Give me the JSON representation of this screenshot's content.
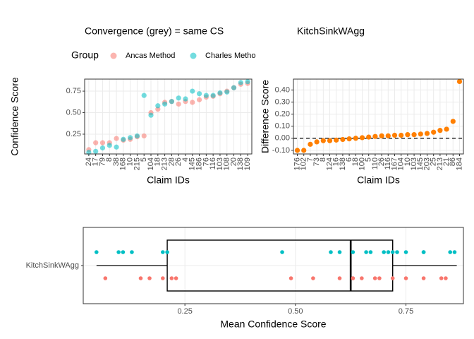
{
  "chart_data": [
    {
      "type": "dot",
      "title": "Convergence (grey) = same CS",
      "xlabel": "Claim IDs",
      "ylabel": "Confidence Score",
      "legend_title": "Group",
      "categories": [
        "24",
        "17",
        "79",
        "8",
        "38",
        "168",
        "10",
        "215",
        "5",
        "104",
        "18",
        "213",
        "28",
        "26",
        "4",
        "145",
        "186",
        "76",
        "116",
        "103",
        "108",
        "20",
        "138",
        "109"
      ],
      "series": [
        {
          "name": "Ancas Method",
          "color": "#F8766D",
          "values": [
            0.07,
            0.15,
            0.15,
            0.15,
            0.2,
            0.18,
            0.19,
            0.22,
            0.23,
            0.5,
            0.54,
            0.62,
            0.63,
            0.6,
            0.63,
            0.62,
            0.65,
            0.68,
            0.69,
            0.72,
            0.75,
            0.79,
            0.83,
            0.84
          ]
        },
        {
          "name": "Charles Method",
          "color": "#00BFC4",
          "values": [
            0.04,
            0.05,
            0.09,
            0.12,
            0.1,
            0.19,
            0.21,
            0.23,
            0.7,
            0.47,
            0.58,
            0.6,
            0.63,
            0.67,
            0.66,
            0.75,
            0.72,
            0.7,
            0.7,
            0.73,
            0.74,
            0.79,
            0.85,
            0.86
          ]
        }
      ],
      "opacity": 0.55,
      "ylim": [
        0.02,
        0.89
      ],
      "yticks": [
        0.25,
        {
          "value": 0.5,
          "label": "0.50"
        },
        0.75
      ],
      "grid": true
    },
    {
      "type": "dot",
      "title": "KitchSinkWAgg",
      "xlabel": "Claim IDs",
      "ylabel": "Difference Score",
      "categories": [
        "176",
        "102",
        "7",
        "73",
        "8",
        "124",
        "16",
        "138",
        "6",
        "18",
        "100",
        "5",
        "110",
        "26",
        "116",
        "167",
        "104",
        "10",
        "103",
        "145",
        "203",
        "25",
        "213",
        "21",
        "86",
        "184"
      ],
      "series": [
        {
          "color": "#FF7F00",
          "values": [
            -0.1,
            -0.1,
            -0.05,
            -0.03,
            -0.02,
            -0.02,
            -0.015,
            -0.01,
            -0.005,
            0.0,
            0.005,
            0.01,
            0.015,
            0.02,
            0.02,
            0.025,
            0.025,
            0.03,
            0.03,
            0.035,
            0.04,
            0.05,
            0.065,
            0.075,
            0.14,
            0.47
          ]
        }
      ],
      "opacity": 1,
      "ylim": [
        -0.13,
        0.49
      ],
      "yticks": [
        {
          "value": -0.1,
          "label": "-0.10"
        },
        {
          "value": 0,
          "label": "0.00"
        },
        {
          "value": 0.1,
          "label": "0.10"
        },
        {
          "value": 0.2,
          "label": "0.20"
        },
        {
          "value": 0.3,
          "label": "0.30"
        },
        {
          "value": 0.4,
          "label": "0.40"
        }
      ],
      "reference_line": 0,
      "grid": true
    },
    {
      "type": "box",
      "xlabel": "Mean Confidence Score",
      "categories": [
        "KitchSinkWAgg"
      ],
      "box": {
        "min": 0.05,
        "q1": 0.21,
        "median": 0.625,
        "q3": 0.72,
        "max": 0.865
      },
      "series": [
        {
          "color": "#F8766D",
          "values": [
            0.07,
            0.15,
            0.17,
            0.2,
            0.22,
            0.23,
            0.49,
            0.54,
            0.6,
            0.63,
            0.63,
            0.65,
            0.68,
            0.69,
            0.72,
            0.75,
            0.79,
            0.83,
            0.84
          ]
        },
        {
          "color": "#00BFC4",
          "values": [
            0.05,
            0.1,
            0.11,
            0.13,
            0.2,
            0.21,
            0.47,
            0.58,
            0.6,
            0.63,
            0.66,
            0.67,
            0.7,
            0.71,
            0.72,
            0.73,
            0.75,
            0.79,
            0.79,
            0.85,
            0.86
          ]
        }
      ],
      "xlim": [
        0.02,
        0.88
      ],
      "xticks": [
        0.25,
        {
          "value": 0.5,
          "label": "0.50"
        },
        0.75
      ],
      "grid": true
    }
  ]
}
